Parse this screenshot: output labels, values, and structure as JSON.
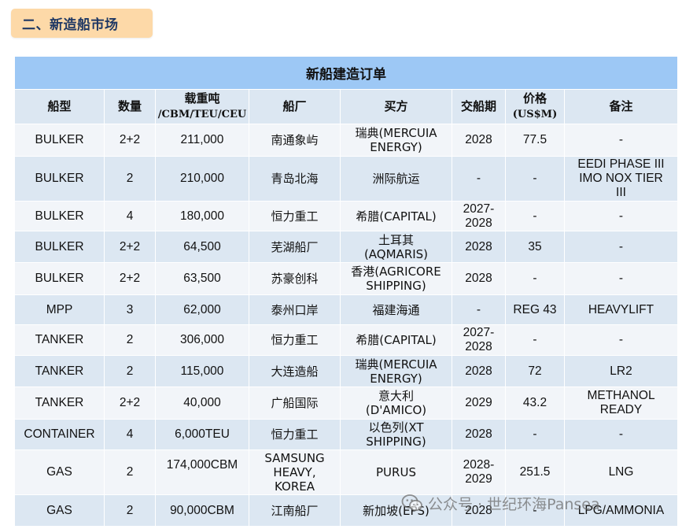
{
  "section_title": "二、新造船市场",
  "table": {
    "title": "新船建造订单",
    "headers": [
      [
        "船型"
      ],
      [
        "数量"
      ],
      [
        "载重吨",
        "/CBM/TEU/CEU"
      ],
      [
        "船厂"
      ],
      [
        "买方"
      ],
      [
        "交船期"
      ],
      [
        "价格",
        "(US$M)"
      ],
      [
        "备注"
      ]
    ],
    "rows": [
      {
        "type": "BULKER",
        "qty": "2+2",
        "dwt": [
          "211,000"
        ],
        "yard": [
          "南通象屿"
        ],
        "buyer": [
          "瑞典(MERCUIA",
          "ENERGY)"
        ],
        "delivery": [
          "2028"
        ],
        "price": "77.5",
        "remark": [
          "-"
        ]
      },
      {
        "type": "BULKER",
        "qty": "2",
        "dwt": [
          "210,000"
        ],
        "yard": [
          "青岛北海"
        ],
        "buyer": [
          "洲际航运"
        ],
        "delivery": [
          "-"
        ],
        "price": "-",
        "remark": [
          "EEDI PHASE III",
          "IMO NOX TIER",
          "III"
        ]
      },
      {
        "type": "BULKER",
        "qty": "4",
        "dwt": [
          "180,000"
        ],
        "yard": [
          "恒力重工"
        ],
        "buyer": [
          "希腊(CAPITAL)"
        ],
        "delivery": [
          "2027-",
          "2028"
        ],
        "price": "-",
        "remark": [
          "-"
        ]
      },
      {
        "type": "BULKER",
        "qty": "2+2",
        "dwt": [
          "64,500"
        ],
        "yard": [
          "芜湖船厂"
        ],
        "buyer": [
          "土耳其",
          "(AQMARIS)"
        ],
        "delivery": [
          "2028"
        ],
        "price": "35",
        "remark": [
          "-"
        ]
      },
      {
        "type": "BULKER",
        "qty": "2+2",
        "dwt": [
          "63,500"
        ],
        "yard": [
          "苏豪创科"
        ],
        "buyer": [
          "香港(AGRICORE",
          "SHIPPING)"
        ],
        "delivery": [
          "2028"
        ],
        "price": "-",
        "remark": [
          "-"
        ]
      },
      {
        "type": "MPP",
        "qty": "3",
        "dwt": [
          "62,000"
        ],
        "yard": [
          "泰州口岸"
        ],
        "buyer": [
          "福建海通"
        ],
        "delivery": [
          "-"
        ],
        "price": "REG 43",
        "remark": [
          "HEAVYLIFT"
        ]
      },
      {
        "type": "TANKER",
        "qty": "2",
        "dwt": [
          "306,000"
        ],
        "yard": [
          "恒力重工"
        ],
        "buyer": [
          "希腊(CAPITAL)"
        ],
        "delivery": [
          "2027-",
          "2028"
        ],
        "price": "-",
        "remark": [
          "-"
        ]
      },
      {
        "type": "TANKER",
        "qty": "2",
        "dwt": [
          "115,000"
        ],
        "yard": [
          "大连造船"
        ],
        "buyer": [
          "瑞典(MERCUIA",
          "ENERGY)"
        ],
        "delivery": [
          "2028"
        ],
        "price": "72",
        "remark": [
          "LR2"
        ]
      },
      {
        "type": "TANKER",
        "qty": "2+2",
        "dwt": [
          "40,000"
        ],
        "yard": [
          "广船国际"
        ],
        "buyer": [
          "意大利",
          "(D'AMICO)"
        ],
        "delivery": [
          "2029"
        ],
        "price": "43.2",
        "remark": [
          "METHANOL",
          "READY"
        ]
      },
      {
        "type": "CONTAINER",
        "qty": "4",
        "dwt": [
          "6,000TEU"
        ],
        "yard": [
          "恒力重工"
        ],
        "buyer": [
          "以色列(XT",
          "SHIPPING)"
        ],
        "delivery": [
          "2028"
        ],
        "price": "-",
        "remark": [
          "-"
        ]
      },
      {
        "type": "GAS",
        "qty": "2",
        "dwt": [
          "174,000CBM",
          "",
          ""
        ],
        "yard": [
          "SAMSUNG",
          "HEAVY,",
          "KOREA"
        ],
        "buyer": [
          "PURUS"
        ],
        "delivery": [
          "2028-",
          "2029"
        ],
        "price": "251.5",
        "remark": [
          "LNG"
        ]
      },
      {
        "type": "GAS",
        "qty": "2",
        "dwt": [
          "90,000CBM"
        ],
        "yard": [
          "江南船厂"
        ],
        "buyer": [
          "新加坡(EPS)"
        ],
        "delivery": [
          "2028"
        ],
        "price": "-",
        "remark": [
          "LPG/AMMONIA"
        ]
      }
    ]
  },
  "watermark": "公众号 · 世纪环海Pansea",
  "watermark_icon": "wechat-icon",
  "colors": {
    "title_bar": "#9dc8f5",
    "header_bg": "#dce7f2",
    "row_light": "#f2f5f9",
    "row_dark": "#dce7f2",
    "badge_bg": "#fdd9a8",
    "badge_text": "#1f3864"
  }
}
